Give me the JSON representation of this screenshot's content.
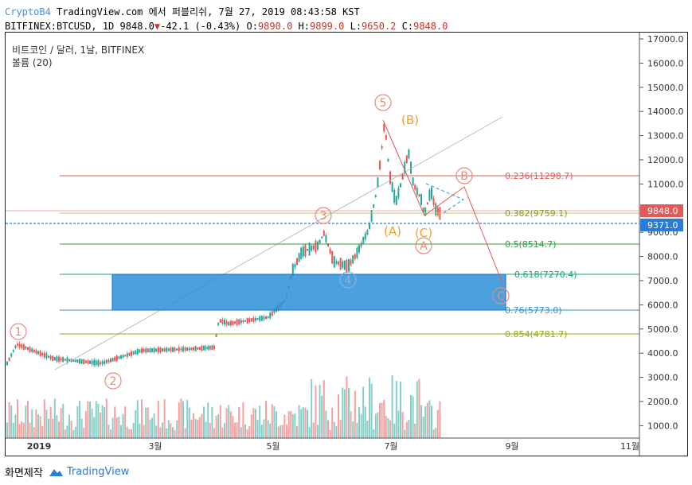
{
  "header": {
    "brand": "CryptoB4",
    "published": "TradingView.com 에서 퍼블리쉬, 7월 27, 2019 08:43:58 KST",
    "symbol": "BITFINEX:BTCUSD, 1D",
    "last": "9848.0",
    "change": "-42.1 (-0.43%)",
    "o_label": "O:",
    "o": "9890.0",
    "h_label": "H:",
    "h": "9899.0",
    "l_label": "L:",
    "l": "9650.2",
    "c_label": "C:",
    "c": "9848.0"
  },
  "legend": {
    "title": "비트코인 / 달러, 1날, BITFINEX",
    "volume": "볼륨 (20)"
  },
  "price_axis": [
    "17000.0",
    "16000.0",
    "15000.0",
    "14000.0",
    "13000.0",
    "12000.0",
    "11000.0",
    "10000.0",
    "9000.0",
    "8000.0",
    "7000.0",
    "6000.0",
    "5000.0",
    "4000.0",
    "3000.0",
    "2000.0",
    "1000.0"
  ],
  "price_badges": {
    "current": "9848.0",
    "line": "9371.0"
  },
  "time_axis": [
    "2019",
    "3월",
    "5월",
    "7월",
    "9월",
    "11월"
  ],
  "fib_levels": [
    {
      "label": "0.236(11298.7)",
      "color": "#e05a5a"
    },
    {
      "label": "0.382(9759.1)",
      "color": "#8a9a1a"
    },
    {
      "label": "0.5(8514.7)",
      "color": "#2aa33a"
    },
    {
      "label": "0.618(7270.4)",
      "color": "#1aa07a"
    },
    {
      "label": "0.76(5773.0)",
      "color": "#2b8fd8"
    },
    {
      "label": "0.854(4781.7)",
      "color": "#8ab00a"
    }
  ],
  "waves": {
    "w1": "1",
    "w2": "2",
    "w3": "3",
    "w4": "4",
    "w5": "5",
    "wA": "(A)",
    "wB": "(B)",
    "wC": "(C)",
    "zA": "A",
    "zB": "B",
    "zC": "C"
  },
  "colors": {
    "up": "#26a69a",
    "down": "#ef5350",
    "wave_circle": "#e88a7a",
    "abc_orange": "#f0a030",
    "fib_zone": "#2b8fd8"
  },
  "footer": {
    "made_with": "화면제작",
    "logo_text": "TradingView"
  }
}
